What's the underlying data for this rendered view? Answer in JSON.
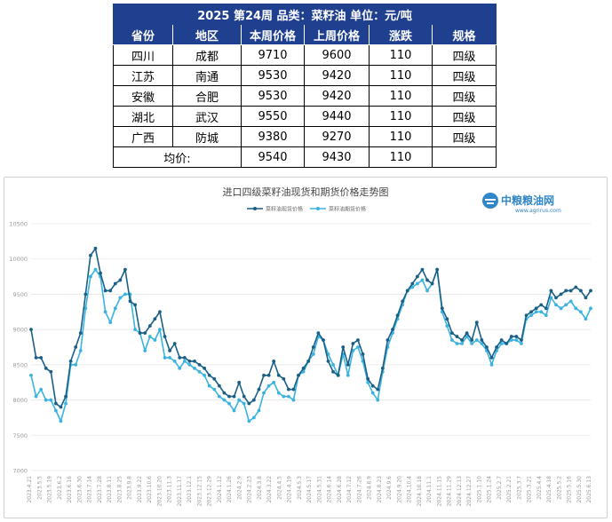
{
  "table": {
    "title": "2025 第24周    品类：菜籽油      单位：元/吨",
    "headers": [
      "省份",
      "地区",
      "本周价格",
      "上周价格",
      "涨跌",
      "规格"
    ],
    "rows": [
      [
        "四川",
        "成都",
        "9710",
        "9600",
        "110",
        "四级"
      ],
      [
        "江苏",
        "南通",
        "9530",
        "9420",
        "110",
        "四级"
      ],
      [
        "安徽",
        "合肥",
        "9530",
        "9420",
        "110",
        "四级"
      ],
      [
        "湖北",
        "武汉",
        "9550",
        "9440",
        "110",
        "四级"
      ],
      [
        "广西",
        "防城",
        "9380",
        "9270",
        "110",
        "四级"
      ]
    ],
    "avg_label": "均价:",
    "avg": [
      "9540",
      "9430",
      "110",
      ""
    ]
  },
  "logo": {
    "name": "中粮粮油网",
    "url": "www.agrirus.com"
  },
  "chart_data": {
    "type": "line",
    "title": "进口四级菜籽油现货和期货价格走势图",
    "legend_position": "top-center",
    "grid": true,
    "ylim": [
      7000,
      10500
    ],
    "yticks": [
      7000,
      7500,
      8000,
      8500,
      9000,
      9500,
      10000,
      10500
    ],
    "x_tick_labels": [
      "2023.4.21",
      "2023.5.5",
      "2023.5.19",
      "2023.6.2",
      "2023.6.16",
      "2023.6.30",
      "2023.7.14",
      "2023.7.28",
      "2023.8.11",
      "2023.8.25",
      "2023.9.8",
      "2023.9.22",
      "2023.10.6",
      "2023.10.20",
      "2023.11.3",
      "2023.11.17",
      "2023.12.1",
      "2023.12.15",
      "2023.12.29",
      "2024.1.12",
      "2024.1.26",
      "2024.2.9",
      "2024.2.23",
      "2024.3.8",
      "2024.3.22",
      "2024.4.5",
      "2024.4.19",
      "2024.5.3",
      "2024.5.17",
      "2024.5.31",
      "2024.6.14",
      "2024.6.28",
      "2024.7.12",
      "2024.7.26",
      "2024.8.9",
      "2024.8.23",
      "2024.9.6",
      "2024.9.20",
      "2024.10.4",
      "2024.10.18",
      "2024.11.1",
      "2024.11.15",
      "2024.11.29",
      "2024.12.13",
      "2024.12.27",
      "2025.1.10",
      "2025.1.24",
      "2025.2.7",
      "2025.2.21",
      "2025.3.7",
      "2025.3.21",
      "2025.4.4",
      "2025.4.18",
      "2025.5.2",
      "2025.5.16",
      "2025.5.30",
      "2025.6.13"
    ],
    "colors": {
      "spot": "#1a5f86",
      "futures": "#3bb3e0"
    },
    "series": [
      {
        "name": "菜籽油现货价格",
        "values": [
          9000,
          8600,
          8600,
          8450,
          8400,
          7950,
          7900,
          8050,
          8550,
          8750,
          8950,
          9500,
          10050,
          10150,
          9800,
          9550,
          9550,
          9650,
          9700,
          9850,
          9400,
          9350,
          8950,
          8950,
          9050,
          9150,
          9250,
          8900,
          8700,
          8800,
          8600,
          8600,
          8550,
          8550,
          8500,
          8450,
          8350,
          8300,
          8200,
          8100,
          8050,
          8050,
          8250,
          8050,
          7950,
          8000,
          8150,
          8350,
          8350,
          8550,
          8350,
          8300,
          8150,
          8150,
          8350,
          8450,
          8550,
          8750,
          8950,
          8850,
          8550,
          8400,
          8350,
          8750,
          8500,
          8800,
          8850,
          8650,
          8300,
          8200,
          8150,
          8450,
          8850,
          9000,
          9200,
          9400,
          9550,
          9650,
          9750,
          9850,
          9700,
          9650,
          9850,
          9300,
          9150,
          8950,
          8900,
          8850,
          8950,
          8850,
          9100,
          8850,
          8750,
          8600,
          8750,
          8850,
          8800,
          8900,
          8900,
          8850,
          9200,
          9250,
          9300,
          9350,
          9300,
          9550,
          9450,
          9500,
          9550,
          9550,
          9600,
          9550,
          9450,
          9550
        ]
      },
      {
        "name": "菜籽油期货价格",
        "values": [
          8350,
          8050,
          8150,
          8000,
          8000,
          7850,
          7700,
          7950,
          8500,
          8500,
          8700,
          9300,
          9750,
          9850,
          9750,
          9250,
          9100,
          9300,
          9450,
          9500,
          9500,
          9000,
          8950,
          8700,
          8900,
          8850,
          9000,
          8600,
          8600,
          8550,
          8450,
          8550,
          8500,
          8450,
          8400,
          8350,
          8200,
          8150,
          8050,
          8000,
          7950,
          7850,
          8000,
          7950,
          7700,
          7750,
          7850,
          8100,
          8200,
          8250,
          8100,
          8050,
          8050,
          8000,
          8350,
          8400,
          8550,
          8650,
          8900,
          8850,
          8650,
          8500,
          8350,
          8650,
          8350,
          8700,
          8750,
          8550,
          8250,
          8100,
          8000,
          8400,
          8750,
          8950,
          9150,
          9350,
          9550,
          9600,
          9650,
          9700,
          9550,
          9650,
          9850,
          9250,
          9050,
          8850,
          8800,
          8800,
          8900,
          8800,
          8850,
          8800,
          8700,
          8500,
          8700,
          8800,
          8800,
          8850,
          8850,
          8800,
          9150,
          9200,
          9250,
          9250,
          9200,
          9450,
          9350,
          9300,
          9350,
          9400,
          9300,
          9250,
          9150,
          9300
        ]
      }
    ]
  }
}
